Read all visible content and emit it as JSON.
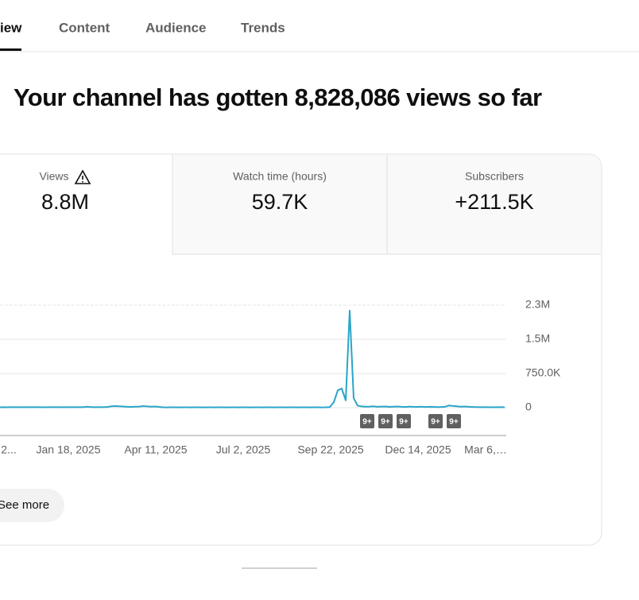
{
  "tabs": [
    "iew",
    "Content",
    "Audience",
    "Trends"
  ],
  "headline": "Your channel has gotten 8,828,086 views so far",
  "metrics": [
    {
      "label": "Views",
      "value": "8.8M"
    },
    {
      "label": "Watch time (hours)",
      "value": "59.7K"
    },
    {
      "label": "Subscribers",
      "value": "+211.5K"
    }
  ],
  "chart_data": {
    "type": "line",
    "color": "#2aa5c9",
    "grid": true,
    "categories": [
      null,
      null,
      "2...",
      null,
      null,
      null,
      null,
      null,
      null,
      null,
      null,
      null,
      null,
      null,
      null,
      null,
      null,
      "Jan 18, 2025",
      null,
      null,
      null,
      null,
      null,
      null,
      null,
      null,
      null,
      null,
      null,
      null,
      null,
      null,
      null,
      null,
      null,
      null,
      null,
      null,
      null,
      "Apr 11, 2025",
      null,
      null,
      null,
      null,
      null,
      null,
      null,
      null,
      null,
      null,
      null,
      null,
      null,
      null,
      null,
      null,
      null,
      null,
      null,
      null,
      null,
      "Jul 2, 2025",
      null,
      null,
      null,
      null,
      null,
      null,
      null,
      null,
      null,
      null,
      null,
      null,
      null,
      null,
      null,
      null,
      null,
      null,
      null,
      null,
      null,
      "Sep 22, 2025",
      null,
      null,
      null,
      null,
      null,
      null,
      null,
      null,
      null,
      null,
      null,
      null,
      null,
      null,
      null,
      null,
      null,
      null,
      null,
      null,
      null,
      "Dec 14, 2025",
      null,
      null,
      null,
      null,
      null,
      null,
      null,
      null,
      null,
      null,
      null,
      null,
      null,
      null,
      null,
      null,
      "Mar 6,…",
      null,
      null,
      null,
      null,
      null
    ],
    "values": [
      9000,
      10000,
      9000,
      10000,
      11000,
      10000,
      9000,
      10000,
      10000,
      11000,
      10000,
      9000,
      10000,
      10000,
      11000,
      10000,
      9000,
      10000,
      10000,
      11000,
      10000,
      12000,
      22000,
      12000,
      11000,
      10000,
      12000,
      15000,
      30000,
      34000,
      30000,
      26000,
      20000,
      18000,
      22000,
      24000,
      34000,
      28000,
      22000,
      26000,
      18000,
      8000,
      7000,
      8000,
      8000,
      7000,
      8000,
      8000,
      7000,
      8000,
      8000,
      7000,
      8000,
      8000,
      7000,
      8000,
      8000,
      7000,
      8000,
      8000,
      7000,
      8000,
      8000,
      7000,
      8000,
      8000,
      7000,
      8000,
      8000,
      7000,
      8000,
      8000,
      7000,
      8000,
      8000,
      7000,
      8000,
      8000,
      7000,
      8000,
      8000,
      7000,
      8000,
      14000,
      120000,
      380000,
      420000,
      160000,
      2130000,
      210000,
      45000,
      28000,
      22000,
      25000,
      30000,
      20000,
      24000,
      26000,
      18000,
      22000,
      27000,
      20000,
      16000,
      24000,
      20000,
      18000,
      22000,
      15000,
      20000,
      18000,
      14000,
      16000,
      20000,
      48000,
      38000,
      30000,
      22000,
      26000,
      20000,
      16000,
      12000,
      10000,
      11000,
      10000,
      9000,
      10000,
      10000,
      9000
    ],
    "ylim": [
      0,
      2250000
    ],
    "yticks": [
      0,
      {
        "value": 750000,
        "label": "750.0K"
      },
      {
        "value": 1500000,
        "label": "1.5M"
      },
      {
        "value": 2250000,
        "label": "2.3M"
      }
    ],
    "annotations": [
      "9+",
      "9+",
      "9+",
      "9+",
      "9+"
    ]
  },
  "see_more": "See more"
}
